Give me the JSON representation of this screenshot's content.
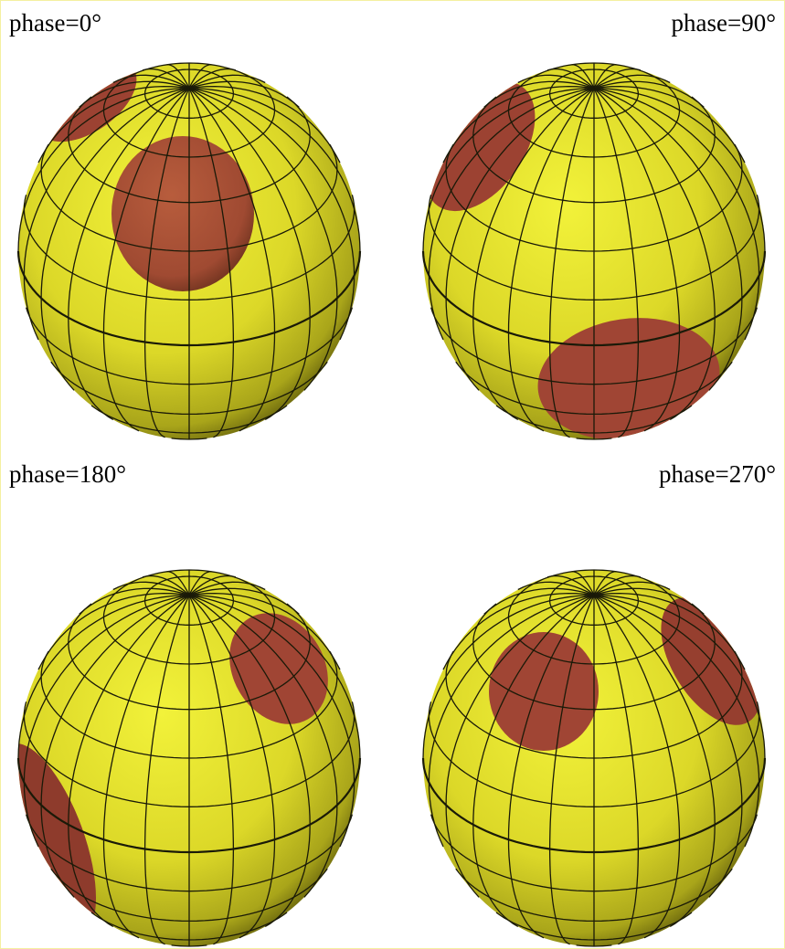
{
  "panels": [
    {
      "label": "phase=0°"
    },
    {
      "label": "phase=90°"
    },
    {
      "label": "phase=180°"
    },
    {
      "label": "phase=270°"
    }
  ]
}
